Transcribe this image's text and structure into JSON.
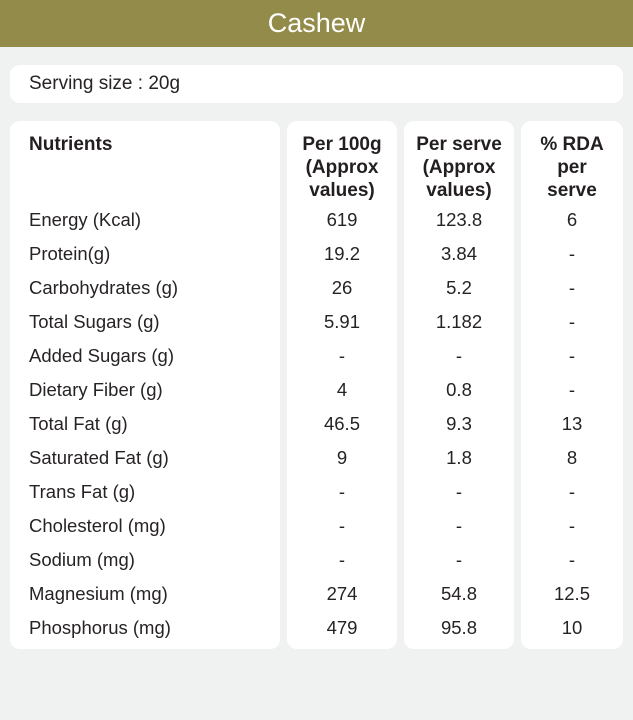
{
  "colors": {
    "accent_olive": "#938B4A",
    "page_background": "#F0F1F1",
    "panel_background": "#FFFFFF",
    "title_text": "#FFFFFF",
    "body_text": "#272324"
  },
  "titlebar": {
    "title": "Cashew"
  },
  "serving": {
    "label": "Serving size : 20g"
  },
  "table": {
    "columns": [
      {
        "label": "Nutrients"
      },
      {
        "label": "Per 100g (Approx values)"
      },
      {
        "label": "Per serve (Approx values)"
      },
      {
        "label": "% RDA per serve"
      }
    ],
    "rows": [
      {
        "label": "Energy (Kcal)",
        "per100g": "619",
        "perserve": "123.8",
        "rda": "6"
      },
      {
        "label": "Protein(g)",
        "per100g": "19.2",
        "perserve": "3.84",
        "rda": "-"
      },
      {
        "label": "Carbohydrates (g)",
        "per100g": "26",
        "perserve": "5.2",
        "rda": "-"
      },
      {
        "label": "Total Sugars (g)",
        "per100g": "5.91",
        "perserve": "1.182",
        "rda": "-"
      },
      {
        "label": "Added Sugars (g)",
        "per100g": "-",
        "perserve": "-",
        "rda": "-"
      },
      {
        "label": "Dietary Fiber (g)",
        "per100g": "4",
        "perserve": "0.8",
        "rda": "-"
      },
      {
        "label": "Total Fat (g)",
        "per100g": "46.5",
        "perserve": "9.3",
        "rda": "13"
      },
      {
        "label": "Saturated Fat (g)",
        "per100g": "9",
        "perserve": "1.8",
        "rda": "8"
      },
      {
        "label": "Trans Fat (g)",
        "per100g": "-",
        "perserve": "-",
        "rda": "-"
      },
      {
        "label": "Cholesterol (mg)",
        "per100g": "-",
        "perserve": "-",
        "rda": "-"
      },
      {
        "label": "Sodium (mg)",
        "per100g": "-",
        "perserve": "-",
        "rda": "-"
      },
      {
        "label": "Magnesium (mg)",
        "per100g": "274",
        "perserve": "54.8",
        "rda": "12.5"
      },
      {
        "label": "Phosphorus (mg)",
        "per100g": "479",
        "perserve": "95.8",
        "rda": "10"
      }
    ]
  }
}
